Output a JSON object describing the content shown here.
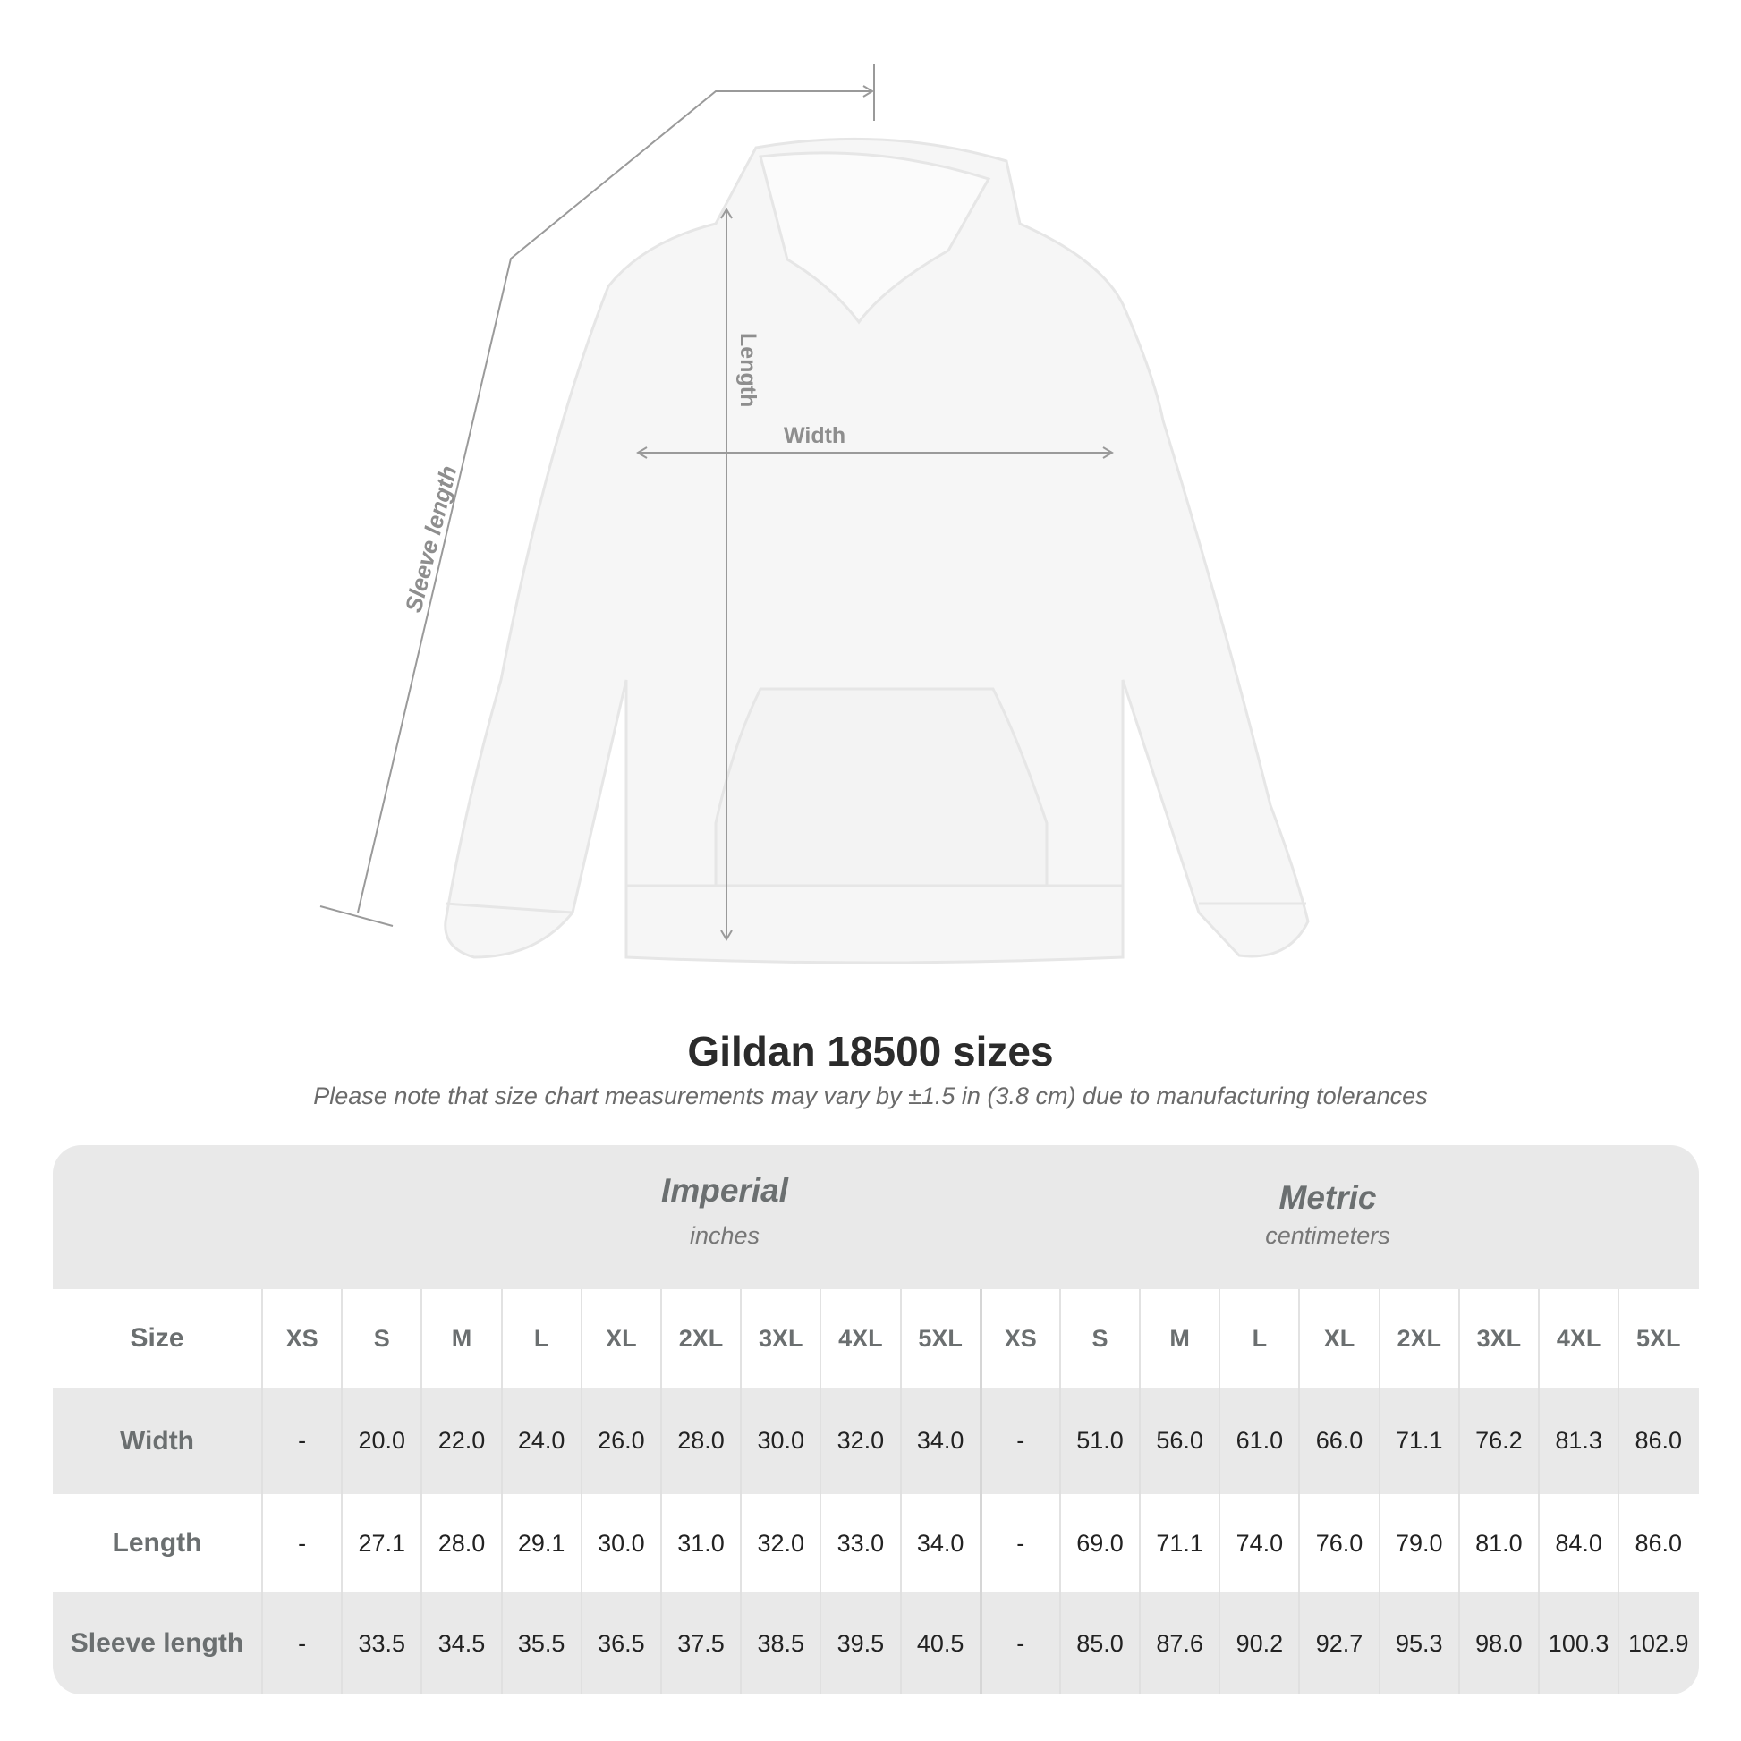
{
  "diagram": {
    "labels": {
      "length": "Length",
      "width": "Width",
      "sleeve": "Sleeve length"
    },
    "line_color": "#9a9a9a",
    "label_color": "#8e8e8e"
  },
  "title": "Gildan 18500 sizes",
  "subtitle": "Please note that size chart measurements may vary by ±1.5 in (3.8 cm) due to manufacturing tolerances",
  "table": {
    "imperial": {
      "name": "Imperial",
      "unit": "inches"
    },
    "metric": {
      "name": "Metric",
      "unit": "centimeters"
    },
    "size_label": "Size",
    "sizes": [
      "XS",
      "S",
      "M",
      "L",
      "XL",
      "2XL",
      "3XL",
      "4XL",
      "5XL"
    ],
    "rows": [
      {
        "label": "Width",
        "imperial": [
          "-",
          "20.0",
          "22.0",
          "24.0",
          "26.0",
          "28.0",
          "30.0",
          "32.0",
          "34.0"
        ],
        "metric": [
          "-",
          "51.0",
          "56.0",
          "61.0",
          "66.0",
          "71.1",
          "76.2",
          "81.3",
          "86.0"
        ]
      },
      {
        "label": "Length",
        "imperial": [
          "-",
          "27.1",
          "28.0",
          "29.1",
          "30.0",
          "31.0",
          "32.0",
          "33.0",
          "34.0"
        ],
        "metric": [
          "-",
          "69.0",
          "71.1",
          "74.0",
          "76.0",
          "79.0",
          "81.0",
          "84.0",
          "86.0"
        ]
      },
      {
        "label": "Sleeve length",
        "imperial": [
          "-",
          "33.5",
          "34.5",
          "35.5",
          "36.5",
          "37.5",
          "38.5",
          "39.5",
          "40.5"
        ],
        "metric": [
          "-",
          "85.0",
          "87.6",
          "90.2",
          "92.7",
          "95.3",
          "98.0",
          "100.3",
          "102.9"
        ]
      }
    ],
    "colors": {
      "band": "#e9e9e9",
      "label": "#6b6f70",
      "value": "#222222"
    }
  }
}
